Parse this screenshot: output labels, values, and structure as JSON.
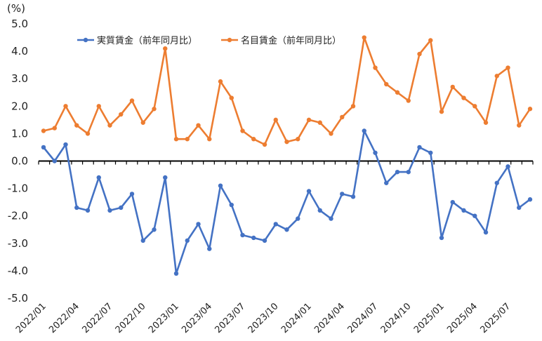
{
  "chart_data": {
    "type": "line",
    "title": "",
    "xlabel": "",
    "ylabel": "(%)",
    "ylim": [
      -5.0,
      5.0
    ],
    "yticks": [
      "5.0",
      "4.0",
      "3.0",
      "2.0",
      "1.0",
      "0.0",
      "-1.0",
      "-2.0",
      "-3.0",
      "-4.0",
      "-5.0"
    ],
    "grid": false,
    "legend_position": "top",
    "categories": [
      "2022/01",
      "2022/02",
      "2022/03",
      "2022/04",
      "2022/05",
      "2022/06",
      "2022/07",
      "2022/08",
      "2022/09",
      "2022/10",
      "2022/11",
      "2022/12",
      "2023/01",
      "2023/02",
      "2023/03",
      "2023/04",
      "2023/05",
      "2023/06",
      "2023/07",
      "2023/08",
      "2023/09",
      "2023/10",
      "2023/11",
      "2023/12",
      "2024/01",
      "2024/02",
      "2024/03",
      "2024/04",
      "2024/05",
      "2024/06",
      "2024/07",
      "2024/08",
      "2024/09",
      "2024/10",
      "2024/11",
      "2024/12",
      "2025/01",
      "2025/02",
      "2025/03",
      "2025/04",
      "2025/05",
      "2025/06",
      "2025/07",
      "2025/08",
      "2025/09"
    ],
    "xtick_labels": [
      "2022/01",
      "2022/04",
      "2022/07",
      "2022/10",
      "2023/01",
      "2023/04",
      "2023/07",
      "2023/10",
      "2024/01",
      "2024/04",
      "2024/07",
      "2024/10",
      "2025/01",
      "2025/04",
      "2025/07"
    ],
    "series": [
      {
        "name": "実質賃金（前年同月比）",
        "color": "#4472c4",
        "values": [
          0.5,
          0.0,
          0.6,
          -1.7,
          -1.8,
          -0.6,
          -1.8,
          -1.7,
          -1.2,
          -2.9,
          -2.5,
          -0.6,
          -4.1,
          -2.9,
          -2.3,
          -3.2,
          -0.9,
          -1.6,
          -2.7,
          -2.8,
          -2.9,
          -2.3,
          -2.5,
          -2.1,
          -1.1,
          -1.8,
          -2.1,
          -1.2,
          -1.3,
          1.1,
          0.3,
          -0.8,
          -0.4,
          -0.4,
          0.5,
          0.3,
          -2.8,
          -1.5,
          -1.8,
          -2.0,
          -2.6,
          -0.8,
          -0.2,
          -1.7,
          -1.4
        ]
      },
      {
        "name": "名目賃金（前年同月比）",
        "color": "#ed7d31",
        "values": [
          1.1,
          1.2,
          2.0,
          1.3,
          1.0,
          2.0,
          1.3,
          1.7,
          2.2,
          1.4,
          1.9,
          4.1,
          0.8,
          0.8,
          1.3,
          0.8,
          2.9,
          2.3,
          1.1,
          0.8,
          0.6,
          1.5,
          0.7,
          0.8,
          1.5,
          1.4,
          1.0,
          1.6,
          2.0,
          4.5,
          3.4,
          2.8,
          2.5,
          2.2,
          3.9,
          4.4,
          1.8,
          2.7,
          2.3,
          2.0,
          1.4,
          3.1,
          3.4,
          1.3,
          1.9
        ]
      }
    ]
  }
}
